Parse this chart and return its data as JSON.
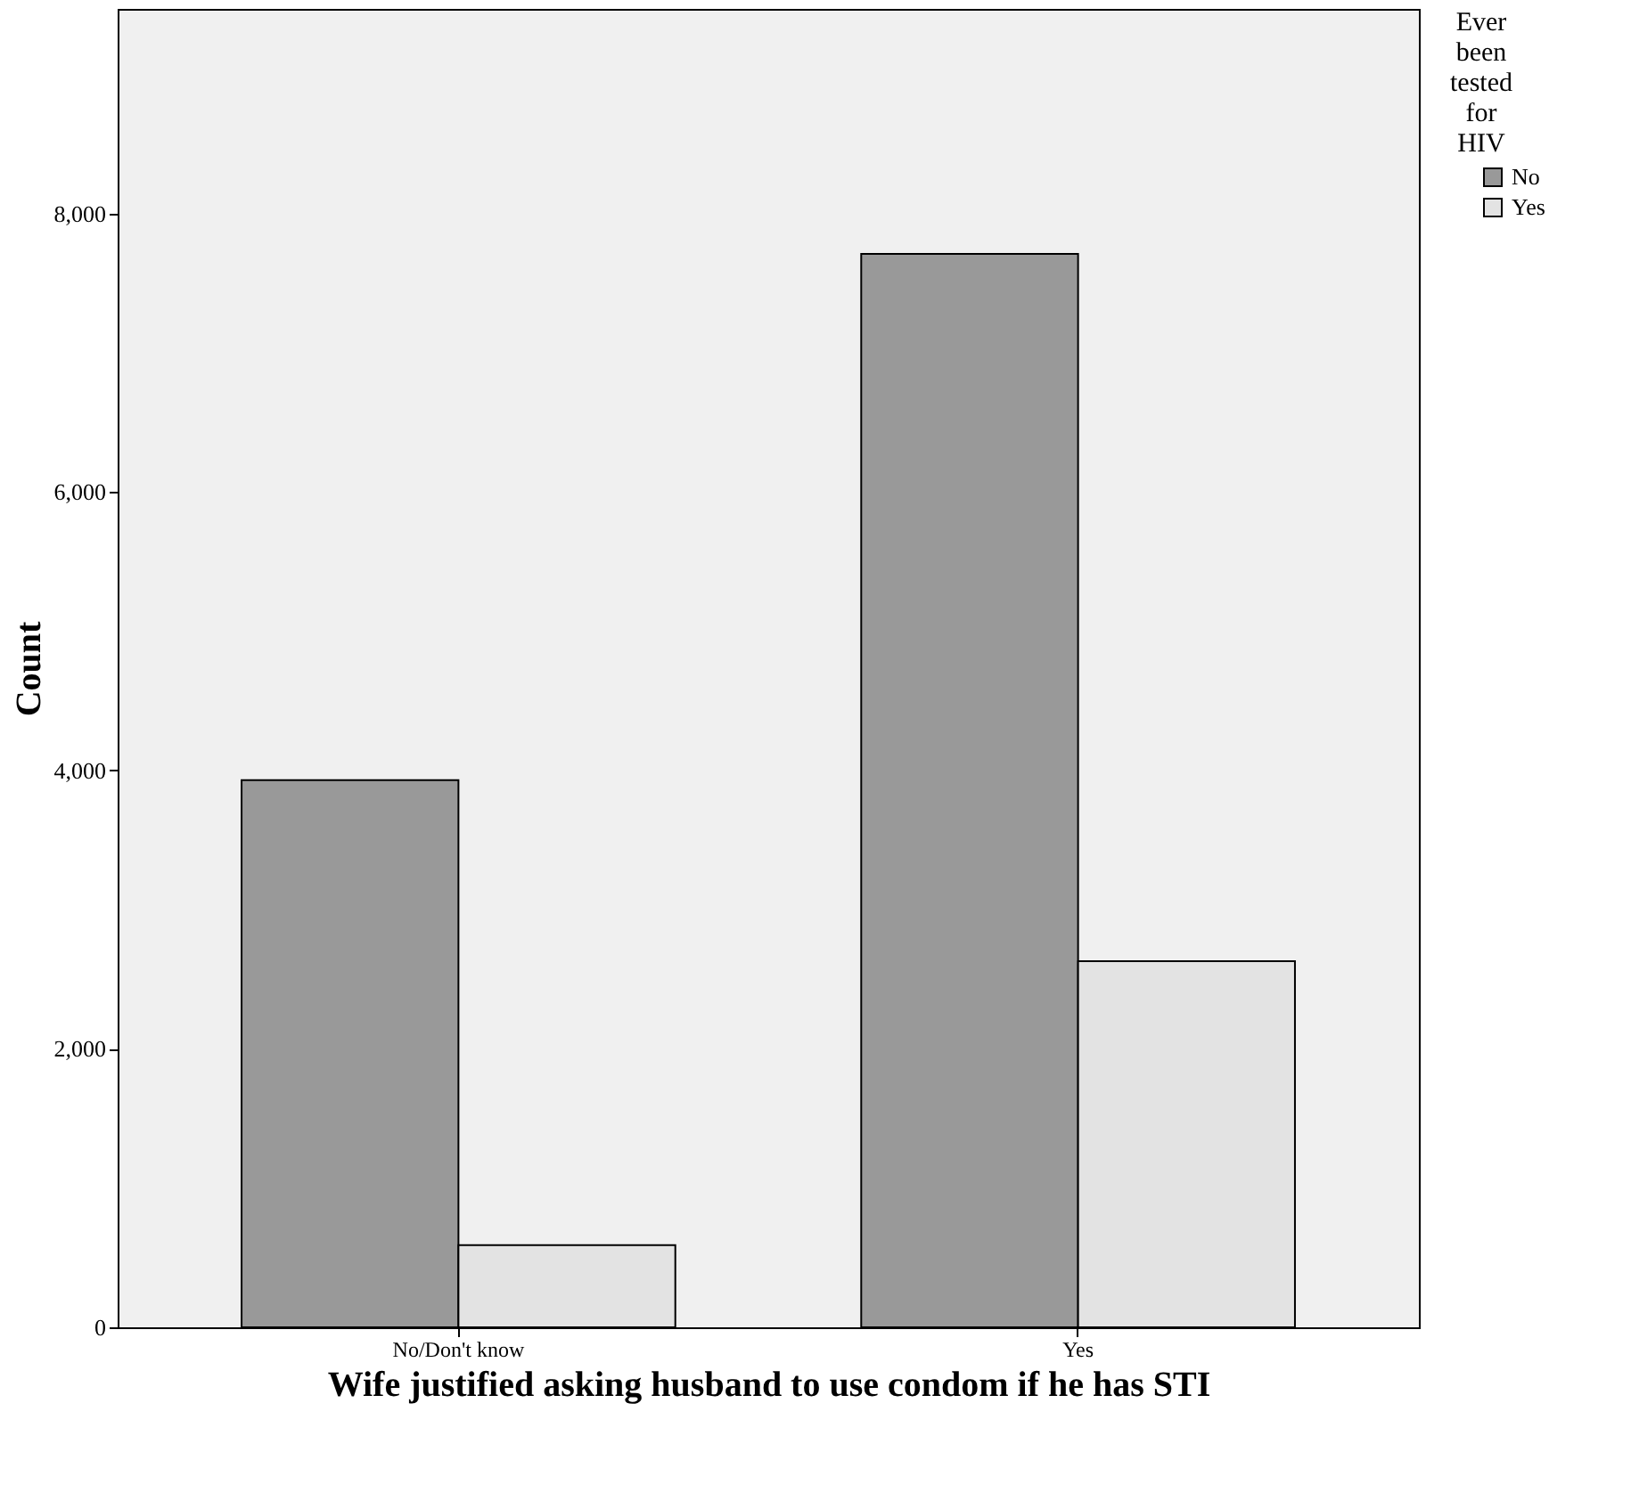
{
  "chart_data": {
    "type": "bar",
    "xlabel": "Wife justified asking husband to use condom if he has STI",
    "ylabel": "Count",
    "legend_title": "Ever been tested for HIV",
    "categories": [
      "No/Don't know",
      "Yes"
    ],
    "series": [
      {
        "name": "No",
        "color": "#999999",
        "values": [
          3930,
          7710
        ]
      },
      {
        "name": "Yes",
        "color": "#e3e3e3",
        "values": [
          590,
          2630
        ]
      }
    ],
    "ylim": [
      0,
      9470
    ],
    "yticks": [
      0,
      {
        "value": 2000,
        "label": "2,000"
      },
      {
        "value": 4000,
        "label": "4,000"
      },
      {
        "value": 6000,
        "label": "6,000"
      },
      {
        "value": 8000,
        "label": "8,000"
      }
    ],
    "grid": false,
    "legend": "top right"
  }
}
